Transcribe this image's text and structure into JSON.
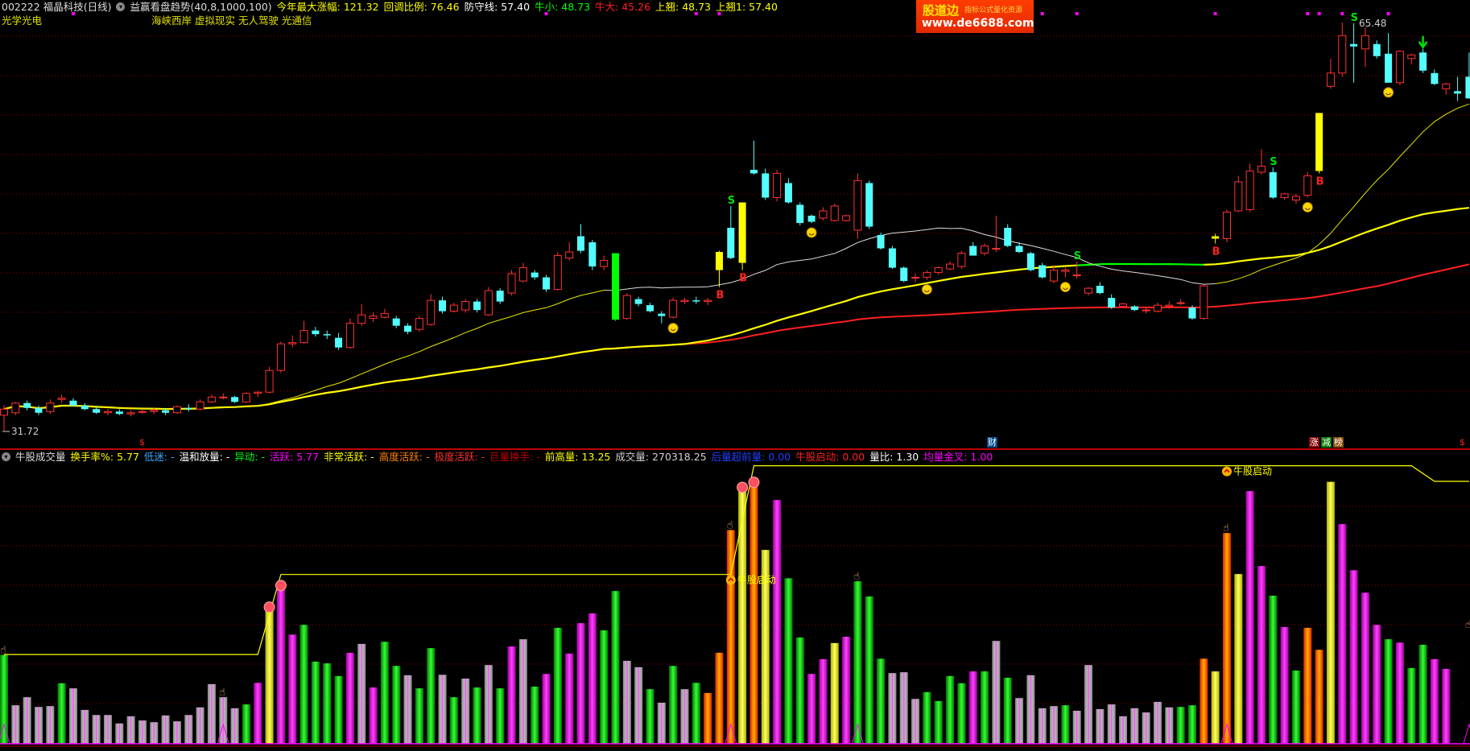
{
  "header": {
    "stock": "002222 福晶科技(日线)",
    "indicator": "益赢看盘趋势(40,8,1000,100)",
    "fields": [
      {
        "label": "今年最大涨幅: 121.32",
        "color": "#ffff00"
      },
      {
        "label": "回调比例: 76.46",
        "color": "#ffff00"
      },
      {
        "label": "防守线: 57.40",
        "color": "#ffffff"
      },
      {
        "label": "牛小: 48.73",
        "color": "#00ff00"
      },
      {
        "label": "牛大: 45.26",
        "color": "#ff2020"
      },
      {
        "label": "上翘: 48.73",
        "color": "#ffff00"
      },
      {
        "label": "上翘1: 57.40",
        "color": "#ffff00"
      }
    ],
    "industry": "光学光电",
    "concepts": "海峡西岸 虚拟现实 无人驾驶 光通信"
  },
  "logo": {
    "brand": "股道边",
    "slogan": "指标公式量化资源",
    "url": "www.de6688.com"
  },
  "price_labels": {
    "high": "65.48",
    "low": "31.72"
  },
  "bottom_labels": {
    "dollar_left": "$",
    "cai": "财",
    "zhang": "涨",
    "jian": "减",
    "bang": "榜",
    "dollar_right": "$"
  },
  "volume_header": {
    "title": "牛股成交量",
    "fields": [
      {
        "label": "换手率%: 5.77",
        "color": "#ffff00"
      },
      {
        "label": "低迷: -",
        "color": "#3fa9ff"
      },
      {
        "label": "温和放量: -",
        "color": "#ffffff"
      },
      {
        "label": "异动: -",
        "color": "#00ff00"
      },
      {
        "label": "活跃: 5.77",
        "color": "#ff00ff"
      },
      {
        "label": "非常活跃: -",
        "color": "#ffff00"
      },
      {
        "label": "高度活跃: -",
        "color": "#ff8000"
      },
      {
        "label": "极度活跃: -",
        "color": "#ff3030"
      },
      {
        "label": "巨量换手: -",
        "color": "#c00000"
      },
      {
        "label": "前高量: 13.25",
        "color": "#ffff00"
      },
      {
        "label": "成交量: 270318.25",
        "color": "#d0d0d0"
      },
      {
        "label": "后量超前量: 0.00",
        "color": "#2040ff"
      },
      {
        "label": "牛股启动: 0.00",
        "color": "#ff2020"
      },
      {
        "label": "量比: 1.30",
        "color": "#ffffff"
      },
      {
        "label": "均量金叉: 1.00",
        "color": "#ff00ff"
      }
    ],
    "start_label": "牛股启动"
  },
  "colors": {
    "up": "#ff3232",
    "down": "#54ffff",
    "yellow": "#ffff00",
    "green": "#00ff00",
    "ma_red": "#ff2020",
    "grid": "#8b0000"
  },
  "chart_data": {
    "type": "candlestick",
    "ylim": [
      31.72,
      65.48
    ],
    "candles": [
      [
        33.0,
        33.8,
        31.72,
        33.5
      ],
      [
        33.2,
        34.1,
        33.0,
        34.0
      ],
      [
        34.0,
        34.2,
        33.4,
        33.6
      ],
      [
        33.6,
        33.8,
        33.0,
        33.2
      ],
      [
        33.3,
        34.3,
        33.1,
        34.0
      ],
      [
        34.3,
        34.7,
        34.0,
        34.4
      ],
      [
        34.2,
        34.4,
        33.7,
        33.8
      ],
      [
        33.8,
        34.0,
        33.4,
        33.5
      ],
      [
        33.5,
        33.7,
        33.1,
        33.2
      ],
      [
        33.2,
        33.5,
        33.0,
        33.3
      ],
      [
        33.3,
        33.5,
        33.0,
        33.1
      ],
      [
        33.1,
        33.4,
        32.9,
        33.2
      ],
      [
        33.3,
        33.5,
        33.1,
        33.3
      ],
      [
        33.3,
        33.6,
        33.1,
        33.4
      ],
      [
        33.4,
        33.6,
        33.0,
        33.2
      ],
      [
        33.2,
        33.8,
        33.1,
        33.7
      ],
      [
        33.6,
        33.9,
        33.3,
        33.5
      ],
      [
        33.5,
        34.3,
        33.4,
        34.1
      ],
      [
        34.1,
        34.7,
        34.0,
        34.5
      ],
      [
        34.5,
        34.8,
        34.3,
        34.5
      ],
      [
        34.5,
        34.6,
        34.0,
        34.1
      ],
      [
        34.1,
        34.9,
        34.0,
        34.8
      ],
      [
        34.8,
        35.0,
        34.5,
        34.9
      ],
      [
        34.9,
        37.0,
        34.8,
        36.7
      ],
      [
        36.7,
        39.1,
        36.5,
        38.9
      ],
      [
        38.9,
        39.6,
        38.6,
        39.0
      ],
      [
        39.0,
        40.8,
        38.9,
        40.0
      ],
      [
        40.0,
        40.3,
        39.5,
        39.7
      ],
      [
        39.7,
        40.0,
        39.3,
        39.6
      ],
      [
        39.4,
        39.8,
        38.4,
        38.6
      ],
      [
        38.6,
        41.0,
        38.5,
        40.6
      ],
      [
        40.6,
        42.2,
        40.4,
        41.3
      ],
      [
        41.0,
        41.5,
        40.7,
        41.2
      ],
      [
        41.1,
        41.8,
        41.0,
        41.4
      ],
      [
        41.0,
        41.2,
        40.2,
        40.4
      ],
      [
        40.4,
        40.6,
        39.7,
        39.9
      ],
      [
        40.1,
        41.2,
        39.9,
        41.0
      ],
      [
        40.5,
        43.0,
        40.4,
        42.5
      ],
      [
        42.5,
        42.8,
        41.4,
        41.6
      ],
      [
        41.6,
        42.3,
        41.5,
        42.1
      ],
      [
        41.7,
        42.6,
        41.5,
        42.4
      ],
      [
        42.4,
        42.6,
        41.5,
        41.7
      ],
      [
        41.3,
        43.6,
        41.2,
        43.3
      ],
      [
        43.3,
        43.5,
        42.2,
        42.4
      ],
      [
        43.1,
        45.0,
        42.9,
        44.7
      ],
      [
        44.1,
        45.6,
        44.0,
        45.2
      ],
      [
        44.8,
        45.0,
        44.2,
        44.4
      ],
      [
        44.4,
        44.6,
        43.2,
        43.4
      ],
      [
        43.4,
        46.5,
        43.3,
        46.2
      ],
      [
        46.0,
        47.3,
        45.8,
        46.5
      ],
      [
        47.8,
        48.8,
        46.4,
        46.6
      ],
      [
        47.3,
        47.5,
        45.0,
        45.3
      ],
      [
        45.3,
        46.2,
        45.0,
        45.8
      ],
      [
        46.4,
        46.4,
        40.8,
        40.9
      ],
      [
        41.0,
        43.1,
        40.9,
        42.9
      ],
      [
        42.6,
        42.8,
        42.0,
        42.2
      ],
      [
        42.1,
        42.3,
        41.5,
        41.6
      ],
      [
        41.4,
        41.6,
        40.6,
        41.2
      ],
      [
        41.1,
        42.7,
        41.0,
        42.5
      ],
      [
        42.4,
        42.7,
        42.2,
        42.5
      ],
      [
        42.5,
        42.8,
        42.2,
        42.4
      ],
      [
        42.4,
        42.7,
        42.1,
        42.5
      ],
      [
        45.0,
        46.6,
        43.6,
        46.5
      ],
      [
        48.5,
        50.3,
        45.9,
        46.0
      ],
      [
        45.6,
        50.6,
        45.0,
        50.6
      ],
      [
        53.3,
        55.7,
        52.9,
        53.0
      ],
      [
        53.0,
        53.4,
        50.8,
        51.0
      ],
      [
        51.0,
        53.3,
        50.7,
        53.0
      ],
      [
        52.2,
        52.6,
        50.5,
        50.6
      ],
      [
        50.4,
        50.6,
        48.7,
        48.9
      ],
      [
        49.5,
        49.6,
        48.9,
        49.0
      ],
      [
        49.3,
        50.2,
        49.1,
        49.9
      ],
      [
        49.1,
        50.5,
        49.0,
        50.3
      ],
      [
        49.1,
        49.6,
        49.0,
        49.5
      ],
      [
        48.3,
        53.0,
        47.6,
        52.4
      ],
      [
        52.2,
        52.4,
        48.4,
        48.6
      ],
      [
        47.9,
        48.1,
        46.7,
        46.8
      ],
      [
        46.8,
        47.0,
        45.1,
        45.2
      ],
      [
        45.2,
        45.3,
        44.0,
        44.1
      ],
      [
        44.4,
        44.7,
        44.0,
        44.4
      ],
      [
        44.4,
        45.0,
        44.2,
        44.8
      ],
      [
        44.8,
        45.3,
        44.6,
        45.2
      ],
      [
        45.1,
        45.7,
        45.0,
        45.5
      ],
      [
        45.3,
        46.6,
        45.1,
        46.4
      ],
      [
        47.0,
        47.3,
        46.2,
        46.2
      ],
      [
        46.4,
        47.2,
        46.2,
        47.0
      ],
      [
        46.8,
        49.5,
        46.5,
        46.8
      ],
      [
        48.5,
        48.8,
        46.9,
        47.0
      ],
      [
        47.0,
        47.3,
        46.4,
        46.5
      ],
      [
        46.4,
        46.5,
        44.9,
        45.0
      ],
      [
        45.4,
        45.6,
        44.3,
        44.4
      ],
      [
        44.1,
        45.4,
        43.9,
        45.0
      ],
      [
        44.9,
        45.2,
        44.4,
        45.0
      ],
      [
        44.6,
        45.7,
        44.3,
        44.6
      ],
      [
        43.1,
        43.6,
        42.9,
        43.5
      ],
      [
        43.7,
        44.0,
        43.0,
        43.1
      ],
      [
        42.7,
        43.0,
        41.8,
        41.9
      ],
      [
        42.0,
        42.3,
        41.9,
        42.2
      ],
      [
        42.0,
        42.1,
        41.6,
        41.7
      ],
      [
        41.7,
        42.0,
        41.4,
        41.7
      ],
      [
        41.6,
        42.3,
        41.5,
        42.1
      ],
      [
        42.0,
        42.4,
        41.8,
        42.1
      ],
      [
        42.3,
        42.6,
        42.1,
        42.3
      ],
      [
        41.9,
        42.1,
        40.9,
        41.0
      ],
      [
        41.0,
        43.8,
        40.9,
        43.7
      ],
      [
        47.6,
        48.0,
        47.2,
        47.8
      ],
      [
        47.6,
        50.0,
        47.3,
        49.8
      ],
      [
        49.9,
        52.8,
        49.8,
        52.3
      ],
      [
        50.0,
        53.8,
        49.8,
        53.2
      ],
      [
        53.1,
        55.0,
        52.9,
        53.6
      ],
      [
        53.1,
        53.5,
        50.9,
        51.0
      ],
      [
        51.0,
        51.4,
        50.8,
        51.3
      ],
      [
        50.8,
        51.3,
        50.5,
        51.1
      ],
      [
        51.2,
        53.1,
        51.0,
        52.8
      ],
      [
        53.2,
        58.0,
        53.0,
        58.0
      ],
      [
        60.2,
        62.5,
        60.0,
        61.3
      ],
      [
        61.3,
        65.48,
        61.0,
        64.4
      ],
      [
        63.7,
        65.4,
        60.5,
        63.5
      ],
      [
        63.3,
        65.1,
        61.8,
        64.4
      ],
      [
        63.7,
        64.0,
        62.5,
        62.7
      ],
      [
        62.9,
        64.6,
        60.5,
        60.5
      ],
      [
        60.5,
        63.2,
        60.3,
        63.1
      ],
      [
        62.5,
        62.9,
        62.0,
        62.8
      ],
      [
        63.0,
        63.3,
        61.3,
        61.5
      ],
      [
        61.3,
        61.6,
        60.3,
        60.4
      ],
      [
        60.0,
        60.5,
        59.5,
        60.4
      ],
      [
        59.8,
        61.0,
        59.0,
        59.6
      ],
      [
        61.0,
        63.0,
        59.2,
        59.2
      ]
    ],
    "highlight_candles": {
      "yellow": [
        62,
        64,
        105,
        114
      ],
      "green": [
        53
      ]
    },
    "signals": {
      "B": [
        62,
        64,
        105,
        114
      ],
      "S": [
        63,
        93,
        110,
        117
      ],
      "smiley": [
        58,
        70,
        80,
        92,
        113,
        120
      ],
      "down_arrow": [
        123
      ]
    },
    "top_marks": [
      6,
      47,
      60,
      62,
      90,
      93,
      105,
      113,
      114,
      116,
      120
    ],
    "volume": {
      "values": [
        210000,
        91000,
        110000,
        87000,
        89000,
        143000,
        131000,
        80000,
        68000,
        68000,
        48000,
        65000,
        55000,
        51000,
        67000,
        53000,
        68000,
        86000,
        141000,
        110000,
        84000,
        93000,
        144000,
        321000,
        372000,
        258000,
        281000,
        194000,
        190000,
        160000,
        215000,
        236000,
        133000,
        241000,
        184000,
        162000,
        131000,
        226000,
        163000,
        110000,
        154000,
        133000,
        186000,
        131000,
        230000,
        247000,
        135000,
        165000,
        274000,
        213000,
        285000,
        308000,
        268000,
        361000,
        196000,
        181000,
        129000,
        97000,
        184000,
        129000,
        144000,
        120000,
        215000,
        505000,
        604000,
        616000,
        458000,
        576000,
        391000,
        251000,
        165000,
        200000,
        238000,
        253000,
        384000,
        348000,
        201000,
        167000,
        169000,
        106000,
        122000,
        101000,
        160000,
        143000,
        171000,
        171000,
        243000,
        156000,
        108000,
        162000,
        84000,
        89000,
        91000,
        78000,
        186000,
        82000,
        93000,
        65000,
        84000,
        74000,
        99000,
        86000,
        87000,
        91000,
        201000,
        171000,
        498000,
        401000,
        597000,
        420000,
        350000,
        276000,
        173000,
        274000,
        222000,
        619000,
        519000,
        410000,
        357000,
        281000,
        247000,
        239000,
        179000,
        234000,
        200000,
        177000,
        247000,
        270318
      ],
      "types": "gppppgpppppppppppppppgmymmggggmpmggpggpgpgpgmpgmgmmmggppgpgpgoooyoymggmmymgggpppggggmgpgppppgpppppppppggoyoymmgmgooymmmmgmggmm",
      "ylim": [
        0,
        660000
      ],
      "step_line": [
        [
          0,
          211000
        ],
        [
          22,
          211000
        ],
        [
          24,
          400000
        ],
        [
          63,
          400000
        ],
        [
          65,
          657000
        ],
        [
          122,
          657000
        ],
        [
          124,
          620000
        ],
        [
          127,
          620000
        ]
      ],
      "hands": [
        0,
        19,
        63,
        74,
        106,
        127
      ],
      "balls": [
        23,
        24,
        64,
        65
      ],
      "start_marks": [
        63,
        106
      ]
    }
  }
}
